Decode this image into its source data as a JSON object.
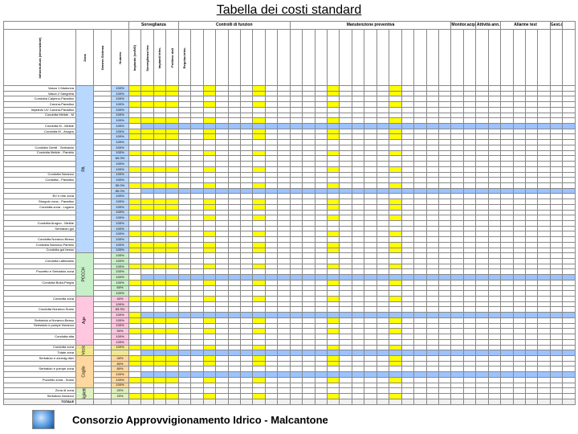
{
  "title": "Tabella dei costi standard",
  "footer": "Consorzio Approvvigionamento Idrico - Malcantone",
  "colors": {
    "section_pa": "#b8d8ff",
    "section_po": "#c8f0c8",
    "section_age": "#ffc8e0",
    "section_vz": "#f0e890",
    "section_cag": "#ffd8a0",
    "section_big": "#e0f0c0",
    "hl_yellow": "#ffff00",
    "hl_blue": "#9cc3ff",
    "border": "#888888",
    "thick_border": "#000000"
  },
  "column_groups": [
    {
      "label": "",
      "span": 4
    },
    {
      "label": "Sorveglianza",
      "span": 4
    },
    {
      "label": "Controlli di funzion",
      "span": 9
    },
    {
      "label": "Manutenzione preventiva",
      "span": 13
    },
    {
      "label": "Monitor.acqua",
      "span": 2
    },
    {
      "label": "Attività ann.",
      "span": 2
    },
    {
      "label": "Allarme test",
      "span": 4
    },
    {
      "label": "Gest.doc",
      "span": 1
    },
    {
      "label": "",
      "span": 1
    }
  ],
  "columns": [
    "Infrastruttura (descrizione)",
    "Zona",
    "Genere-Sistema",
    "Numero",
    "Impianto (sn/NO)",
    "Sorveglianza terr.",
    "Impianti telec.",
    "Prelievo dati",
    "Regolaz.telec.",
    "",
    "",
    "",
    "",
    "",
    "",
    "",
    "",
    "",
    "",
    "",
    "",
    "",
    "",
    "",
    "",
    "",
    "",
    "",
    "",
    "",
    "",
    "",
    "",
    "",
    "",
    "",
    "",
    "",
    "",
    "",
    "",
    "Totale/anno"
  ],
  "sections": [
    {
      "id": "PA",
      "label": "PA",
      "color": "#b8d8ff",
      "rows": [
        {
          "label": "Vasca 1 Madonna",
          "code": "100%"
        },
        {
          "label": "Vasca 2 Sangheia",
          "code": "100%"
        },
        {
          "label": "Condotta Calprino-Paradiso",
          "code": "100%"
        },
        {
          "label": "Carona-Paradiso",
          "code": "100%"
        },
        {
          "label": "Impianto UV Carona-Paradiso",
          "code": "100%"
        },
        {
          "label": "Condotta Melide - M",
          "code": "100%"
        },
        {
          "label": "",
          "code": "100%"
        },
        {
          "label": "Condotta M - Melide",
          "code": "100%"
        },
        {
          "label": "Condotta M - Arogno",
          "code": "100%"
        },
        {
          "label": "",
          "code": "100%"
        },
        {
          "label": "",
          "code": "100%"
        },
        {
          "label": "Condotta Gentil - Serbatoio",
          "code": "100%"
        },
        {
          "label": "Condotta Melide - Pambio",
          "code": "100%"
        },
        {
          "label": "",
          "code": "60.0%"
        },
        {
          "label": "",
          "code": "100%"
        },
        {
          "label": "",
          "code": "100%"
        },
        {
          "label": "Condotta Noranco",
          "code": "100%"
        },
        {
          "label": "Condotta - Paradiso",
          "code": "100%"
        },
        {
          "label": "",
          "code": "50.0%"
        },
        {
          "label": "",
          "code": "60.0%"
        },
        {
          "label": "BV e rete zona",
          "code": "100%"
        },
        {
          "label": "Storgolo zona - Paradiso",
          "code": "100%"
        },
        {
          "label": "Condotta zona - Lugano",
          "code": "100%"
        },
        {
          "label": "",
          "code": "100%"
        },
        {
          "label": "",
          "code": "100%"
        },
        {
          "label": "Condotta Arogno - Melide",
          "code": "100%"
        },
        {
          "label": "Serbatoio gol",
          "code": "100%"
        },
        {
          "label": "",
          "code": "100%"
        },
        {
          "label": "Condotta Noranco-Besso",
          "code": "100%"
        },
        {
          "label": "Condotta Noranco-Pambio",
          "code": "100%"
        },
        {
          "label": "Condotta gol besso",
          "code": "100%"
        }
      ]
    },
    {
      "id": "PO",
      "label": "POCCH",
      "color": "#c8f0c8",
      "rows": [
        {
          "label": "",
          "code": "100%"
        },
        {
          "label": "Condotta Lattecaldo",
          "code": "100%"
        },
        {
          "label": "",
          "code": "100%"
        },
        {
          "label": "Pozzetto e Serbatoio zona",
          "code": "100%"
        },
        {
          "label": "",
          "code": "100%"
        },
        {
          "label": "Condotta Bolla-Pregra",
          "code": "100%"
        },
        {
          "label": "",
          "code": "60%"
        },
        {
          "label": "",
          "code": "100%"
        }
      ]
    },
    {
      "id": "AGE",
      "label": "Age",
      "color": "#ffc8e0",
      "rows": [
        {
          "label": "Condotta zona",
          "code": "40%"
        },
        {
          "label": "",
          "code": "100%"
        },
        {
          "label": "Condotta Noranco-Sosto",
          "code": "83.3%"
        },
        {
          "label": "",
          "code": "100%"
        },
        {
          "label": "Serbatoio a Noranco-Besso",
          "code": "100%"
        },
        {
          "label": "Serbatoio e pompe Noranco",
          "code": "100%"
        },
        {
          "label": "",
          "code": "50%"
        },
        {
          "label": "Condotta alta",
          "code": "100%"
        },
        {
          "label": "",
          "code": "100%"
        }
      ]
    },
    {
      "id": "VZ",
      "label": "Vezio",
      "color": "#f0e890",
      "rows": [
        {
          "label": "Condotta zona",
          "code": "100%"
        },
        {
          "label": "Totale zona",
          "code": ""
        }
      ]
    },
    {
      "id": "CAG",
      "label": "Caglio",
      "color": "#ffd8a0",
      "rows": [
        {
          "label": "Serbatoio e zonedg distr",
          "code": "40%"
        },
        {
          "label": "",
          "code": "80%"
        },
        {
          "label": "Serbatoio e pompe zona",
          "code": "80%"
        },
        {
          "label": "",
          "code": "100%"
        },
        {
          "label": "Pozzetto zona - Sosto",
          "code": "100%"
        },
        {
          "label": "",
          "code": "100%"
        }
      ]
    },
    {
      "id": "BIG",
      "label": "Biglietto",
      "color": "#e0f0c0",
      "rows": [
        {
          "label": "Zona di zona",
          "code": "20%"
        },
        {
          "label": "Serbatoio Noranco",
          "code": "20%"
        }
      ]
    }
  ],
  "total_label": "TOTALE",
  "highlight_pattern": {
    "yellow_cols": [
      4,
      5,
      6,
      7,
      10,
      14,
      20,
      25
    ],
    "blue_rows": [
      7,
      19,
      35,
      42,
      49,
      53,
      59
    ]
  }
}
